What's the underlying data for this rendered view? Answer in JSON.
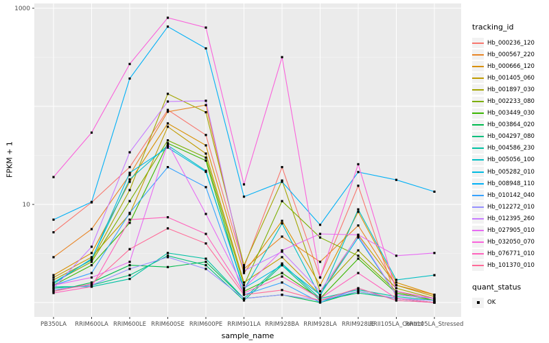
{
  "figure": {
    "y_axis_title": "FPKM + 1",
    "x_axis_title": "sample_name"
  },
  "legend": {
    "tracking_title": "tracking_id",
    "quant_title": "quant_status",
    "quant_ok_label": "OK"
  },
  "colors": {
    "panel_bg": "#EBEBEB",
    "grid": "#FFFFFF",
    "axis_text": "#4D4D4D",
    "tick": "#333333",
    "point": "#000000"
  },
  "chart_data": {
    "type": "line",
    "title": "",
    "xlabel": "sample_name",
    "ylabel": "FPKM + 1",
    "y_scale": "log10",
    "ylim": [
      0.9,
      1100
    ],
    "grid": "on",
    "legend_position": "right",
    "marker": "small black square (quant_status = OK)",
    "y_tick_labels": [
      {
        "value": 1000,
        "label": "1000"
      },
      {
        "value": 10,
        "label": "10"
      }
    ],
    "y_major_gridlines": [
      1,
      10,
      100,
      1000
    ],
    "y_minor_gridlines": [
      3.162,
      31.62,
      316.2
    ],
    "x_categories": [
      "PB350LA",
      "RRIM600LA",
      "RRIM600LE",
      "RRIM600SE",
      "RRIM600PE",
      "RRIM901LA",
      "RRIM928BA",
      "RRIM928LA",
      "RRIM928LE",
      "RRII105LA_Control",
      "RRII105LA_Stressed"
    ],
    "series": [
      {
        "tracking_id": "Hb_000236_120",
        "color": "#F8766D",
        "values": [
          5.2,
          10.5,
          24,
          92,
          51,
          2.3,
          24,
          1.8,
          15.5,
          1.1,
          1.0
        ]
      },
      {
        "tracking_id": "Hb_000567_220",
        "color": "#E88526",
        "values": [
          2.9,
          5.6,
          20,
          88,
          103,
          2.2,
          4.7,
          2.6,
          6.1,
          1.5,
          1.2
        ]
      },
      {
        "tracking_id": "Hb_000666_120",
        "color": "#D89000",
        "values": [
          1.9,
          3.2,
          17,
          67,
          40,
          2.0,
          6.8,
          1.5,
          8.4,
          1.6,
          1.2
        ]
      },
      {
        "tracking_id": "Hb_001405_060",
        "color": "#C09B00",
        "values": [
          1.8,
          2.9,
          8.0,
          62,
          33,
          1.6,
          2.9,
          1.2,
          4.9,
          1.5,
          1.15
        ]
      },
      {
        "tracking_id": "Hb_001897_030",
        "color": "#A3A500",
        "values": [
          1.7,
          2.7,
          14,
          134,
          87,
          2.4,
          17.5,
          1.3,
          3.4,
          1.4,
          1.1
        ]
      },
      {
        "tracking_id": "Hb_002233_080",
        "color": "#7CAE00",
        "values": [
          1.6,
          2.6,
          10.8,
          45,
          30,
          1.5,
          10.8,
          4.6,
          3.0,
          1.3,
          1.05
        ]
      },
      {
        "tracking_id": "Hb_003449_030",
        "color": "#39B600",
        "values": [
          1.5,
          2.4,
          6.5,
          42,
          28,
          1.3,
          2.0,
          1.1,
          2.8,
          1.25,
          1.05
        ]
      },
      {
        "tracking_id": "Hb_003864_020",
        "color": "#00BB4E",
        "values": [
          1.3,
          1.6,
          2.4,
          2.3,
          2.6,
          1.1,
          1.2,
          1.0,
          1.3,
          1.1,
          1.0
        ]
      },
      {
        "tracking_id": "Hb_004297_080",
        "color": "#00BF7D",
        "values": [
          1.4,
          1.5,
          1.9,
          3.0,
          2.4,
          1.05,
          2.4,
          1.05,
          1.25,
          1.1,
          1.0
        ]
      },
      {
        "tracking_id": "Hb_004586_230",
        "color": "#00C1A3",
        "values": [
          1.45,
          1.45,
          1.74,
          3.2,
          2.8,
          1.1,
          2.5,
          1.1,
          1.35,
          1.15,
          1.05
        ]
      },
      {
        "tracking_id": "Hb_005056_100",
        "color": "#00BFC4",
        "values": [
          1.55,
          2.8,
          18,
          40,
          22,
          1.35,
          6.4,
          1.15,
          8.9,
          1.7,
          1.9
        ]
      },
      {
        "tracking_id": "Hb_005282_010",
        "color": "#00BAE0",
        "values": [
          1.6,
          2.75,
          21,
          38,
          21.5,
          1.4,
          2.4,
          1.2,
          4.6,
          1.2,
          1.1
        ]
      },
      {
        "tracking_id": "Hb_008948_110",
        "color": "#00B0F6",
        "values": [
          7.0,
          10.6,
          192,
          650,
          390,
          12,
          17,
          6.2,
          21.4,
          17.8,
          13.5
        ]
      },
      {
        "tracking_id": "Hb_010142_040",
        "color": "#35A2FF",
        "values": [
          1.5,
          2.0,
          8.2,
          24,
          15,
          1.2,
          1.6,
          1.0,
          1.4,
          1.05,
          1.0
        ]
      },
      {
        "tracking_id": "Hb_012272_010",
        "color": "#9590FF",
        "values": [
          1.35,
          1.5,
          2.2,
          2.9,
          2.2,
          1.1,
          1.2,
          1.05,
          1.3,
          1.1,
          1.05
        ]
      },
      {
        "tracking_id": "Hb_012395_260",
        "color": "#C77CFF",
        "values": [
          1.4,
          3.7,
          34,
          112,
          114,
          2.1,
          3.3,
          1.3,
          4.8,
          1.2,
          1.1
        ]
      },
      {
        "tracking_id": "Hb_027905_010",
        "color": "#E76BF3",
        "values": [
          1.5,
          1.8,
          2.6,
          42,
          8.0,
          1.4,
          3.4,
          5.0,
          4.9,
          3.0,
          3.2
        ]
      },
      {
        "tracking_id": "Hb_032050_070",
        "color": "#FA62DB",
        "values": [
          19,
          54,
          270,
          800,
          635,
          16,
          317,
          1.8,
          25.7,
          1.3,
          1.1
        ]
      },
      {
        "tracking_id": "Hb_076771_010",
        "color": "#FF62BC",
        "values": [
          1.25,
          1.45,
          7.0,
          7.4,
          5.0,
          1.25,
          1.84,
          1.1,
          2.0,
          1.1,
          1.0
        ]
      },
      {
        "tracking_id": "Hb_101370_010",
        "color": "#FF6A98",
        "values": [
          1.3,
          1.55,
          3.5,
          5.7,
          4.0,
          1.2,
          1.34,
          1.05,
          1.4,
          1.05,
          1.0
        ]
      }
    ]
  }
}
